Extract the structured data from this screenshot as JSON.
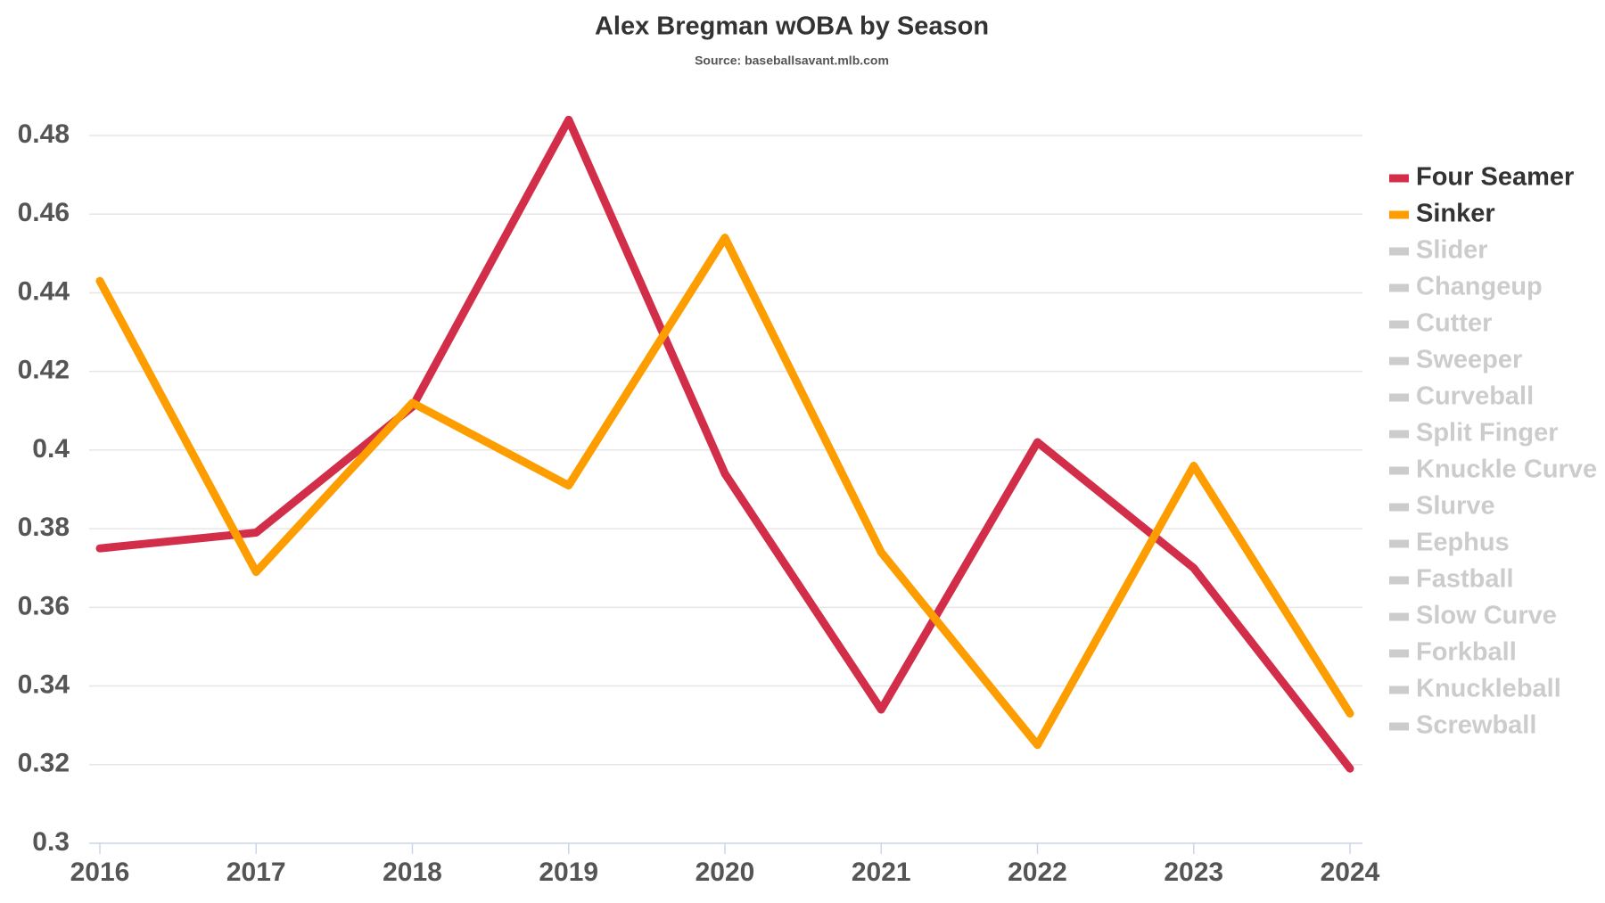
{
  "chart_data": {
    "type": "line",
    "title": "Alex Bregman wOBA by Season",
    "subtitle": "Source: baseballsavant.mlb.com",
    "categories": [
      "2016",
      "2017",
      "2018",
      "2019",
      "2020",
      "2021",
      "2022",
      "2023",
      "2024"
    ],
    "series": [
      {
        "name": "Four Seamer",
        "color": "#d22d49",
        "visible": true,
        "values": [
          0.375,
          0.379,
          0.411,
          0.484,
          0.394,
          0.334,
          0.402,
          0.37,
          0.319
        ]
      },
      {
        "name": "Sinker",
        "color": "#fe9d00",
        "visible": true,
        "values": [
          0.443,
          0.369,
          0.412,
          0.391,
          0.454,
          0.374,
          0.325,
          0.396,
          0.333
        ]
      },
      {
        "name": "Slider",
        "color": "#cccccc",
        "visible": false,
        "values": [
          null,
          null,
          null,
          null,
          null,
          null,
          null,
          null,
          null
        ]
      },
      {
        "name": "Changeup",
        "color": "#cccccc",
        "visible": false,
        "values": [
          null,
          null,
          null,
          null,
          null,
          null,
          null,
          null,
          null
        ]
      },
      {
        "name": "Cutter",
        "color": "#cccccc",
        "visible": false,
        "values": [
          null,
          null,
          null,
          null,
          null,
          null,
          null,
          null,
          null
        ]
      },
      {
        "name": "Sweeper",
        "color": "#cccccc",
        "visible": false,
        "values": [
          null,
          null,
          null,
          null,
          null,
          null,
          null,
          null,
          null
        ]
      },
      {
        "name": "Curveball",
        "color": "#cccccc",
        "visible": false,
        "values": [
          null,
          null,
          null,
          null,
          null,
          null,
          null,
          null,
          null
        ]
      },
      {
        "name": "Split Finger",
        "color": "#cccccc",
        "visible": false,
        "values": [
          null,
          null,
          null,
          null,
          null,
          null,
          null,
          null,
          null
        ]
      },
      {
        "name": "Knuckle Curve",
        "color": "#cccccc",
        "visible": false,
        "values": [
          null,
          null,
          null,
          null,
          null,
          null,
          null,
          null,
          null
        ]
      },
      {
        "name": "Slurve",
        "color": "#cccccc",
        "visible": false,
        "values": [
          null,
          null,
          null,
          null,
          null,
          null,
          null,
          null,
          null
        ]
      },
      {
        "name": "Eephus",
        "color": "#cccccc",
        "visible": false,
        "values": [
          null,
          null,
          null,
          null,
          null,
          null,
          null,
          null,
          null
        ]
      },
      {
        "name": "Fastball",
        "color": "#cccccc",
        "visible": false,
        "values": [
          null,
          null,
          null,
          null,
          null,
          null,
          null,
          null,
          null
        ]
      },
      {
        "name": "Slow Curve",
        "color": "#cccccc",
        "visible": false,
        "values": [
          null,
          null,
          null,
          null,
          null,
          null,
          null,
          null,
          null
        ]
      },
      {
        "name": "Forkball",
        "color": "#cccccc",
        "visible": false,
        "values": [
          null,
          null,
          null,
          null,
          null,
          null,
          null,
          null,
          null
        ]
      },
      {
        "name": "Knuckleball",
        "color": "#cccccc",
        "visible": false,
        "values": [
          null,
          null,
          null,
          null,
          null,
          null,
          null,
          null,
          null
        ]
      },
      {
        "name": "Screwball",
        "color": "#cccccc",
        "visible": false,
        "values": [
          null,
          null,
          null,
          null,
          null,
          null,
          null,
          null,
          null
        ]
      }
    ],
    "ylim": [
      0.3,
      0.48
    ],
    "yticks": [
      0.3,
      0.32,
      0.34,
      0.36,
      0.38,
      0.4,
      0.42,
      0.44,
      0.46,
      0.48
    ],
    "grid": true,
    "legend": "right"
  }
}
